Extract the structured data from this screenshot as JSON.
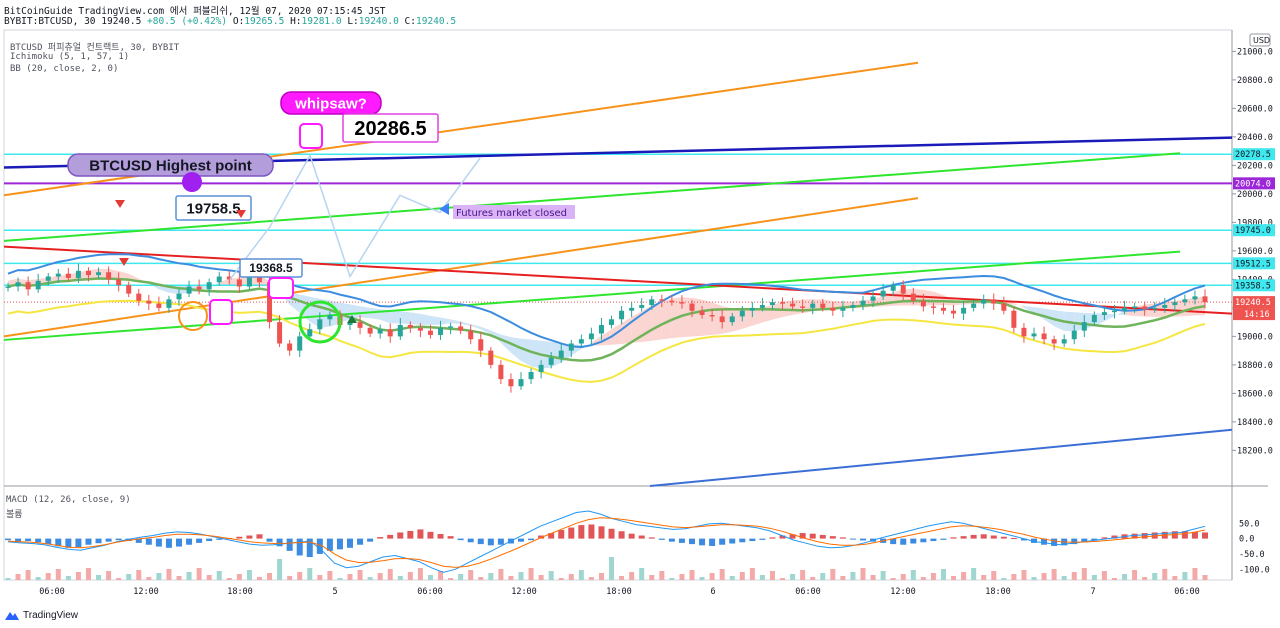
{
  "header": {
    "line1": "BitCoinGuide TradingView.com 에서 퍼블리쉬, 12월 07, 2020 07:15:45 JST",
    "symbol": "BYBIT:BTCUSD, 30",
    "price": "19240.5",
    "change": "+80.5 (+0.42%)",
    "open_label": "O:",
    "open": "19265.5",
    "high_label": "H:",
    "high": "19281.0",
    "low_label": "L:",
    "low": "19240.0",
    "close_label": "C:",
    "close": "19240.5"
  },
  "legend": {
    "line1": "BTCUSD 퍼피츄얼 컨트랙트, 30, BYBIT",
    "line2": "Ichimoku (5, 1, 57, 1)",
    "line3": "BB (20, close, 2, 0)",
    "macd": "MACD (12, 26, close, 9)",
    "volume": "볼륨"
  },
  "footer": {
    "brand": "TradingView"
  },
  "colors": {
    "candle_up": "#26a69a",
    "candle_down": "#ef5350",
    "cloud_up": "#f8c7c2",
    "cloud_down": "#bcdcf3",
    "orange_channel": "#f7931a",
    "green_channel": "#2ee62e",
    "blue_trend": "#1a1ab8",
    "red_trend": "#e62020",
    "horizontal": "#3fe8ee",
    "purple_line": "#9c27d9",
    "bb_basis": "#6fb35a",
    "bb_lower": "#f5e642",
    "bb_upper": "#3c8de0"
  },
  "chart_data": [
    {
      "type": "candlestick",
      "title": "BTCUSD 퍼피츄얼 컨트랙트, 30, BYBIT",
      "ylabel": "USD",
      "ylim": [
        17950,
        21150
      ],
      "y_ticks": [
        "18200.0",
        "18400.0",
        "18600.0",
        "18800.0",
        "19000.0",
        "19200.0",
        "19400.0",
        "19600.0",
        "19800.0",
        "20000.0",
        "20200.0",
        "20400.0",
        "20600.0",
        "20800.0",
        "21000.0"
      ],
      "x_ticks": [
        "06:00",
        "12:00",
        "18:00",
        "5",
        "06:00",
        "12:00",
        "18:00",
        "6",
        "06:00",
        "12:00",
        "18:00",
        "7",
        "06:00"
      ],
      "price_labels": [
        {
          "value": 20278.5,
          "text": "20278.5",
          "color": "#3fe8ee"
        },
        {
          "value": 20074.0,
          "text": "20074.0",
          "color": "#9c27d9"
        },
        {
          "value": 19745.0,
          "text": "19745.0",
          "color": "#3fe8ee"
        },
        {
          "value": 19512.5,
          "text": "19512.5",
          "color": "#3fe8ee"
        },
        {
          "value": 19358.5,
          "text": "19358.5",
          "color": "#3fe8ee"
        },
        {
          "value": 19240.5,
          "text": "19240.5",
          "color": "#ef5350"
        }
      ],
      "countdown": "14:16",
      "close_series": [
        19350,
        19380,
        19330,
        19390,
        19420,
        19440,
        19410,
        19460,
        19430,
        19450,
        19400,
        19360,
        19300,
        19250,
        19230,
        19200,
        19260,
        19300,
        19350,
        19330,
        19380,
        19420,
        19400,
        19350,
        19420,
        19380,
        19100,
        18950,
        18900,
        19000,
        19050,
        19120,
        19150,
        19080,
        19100,
        19060,
        19020,
        19050,
        19000,
        19080,
        19060,
        19040,
        19010,
        19060,
        19070,
        19040,
        18980,
        18900,
        18800,
        18700,
        18650,
        18700,
        18750,
        18800,
        18850,
        18900,
        18950,
        18980,
        19020,
        19080,
        19120,
        19180,
        19200,
        19220,
        19260,
        19250,
        19240,
        19230,
        19180,
        19150,
        19140,
        19100,
        19140,
        19180,
        19200,
        19220,
        19240,
        19230,
        19210,
        19200,
        19230,
        19200,
        19180,
        19200,
        19220,
        19250,
        19280,
        19320,
        19360,
        19300,
        19250,
        19210,
        19200,
        19180,
        19160,
        19200,
        19230,
        19260,
        19230,
        19180,
        19060,
        19000,
        19020,
        18980,
        18950,
        18980,
        19040,
        19100,
        19150,
        19170,
        19180,
        19200,
        19210,
        19190,
        19200,
        19220,
        19240,
        19260,
        19281,
        19240.5
      ],
      "annotations": [
        {
          "text": "whipsaw?",
          "style": "magenta-bubble"
        },
        {
          "text": "20286.5",
          "style": "price-box"
        },
        {
          "text": "BTCUSD Highest point",
          "style": "purple-bubble"
        },
        {
          "text": "19758.5",
          "style": "price-box"
        },
        {
          "text": "19368.5",
          "style": "price-box"
        },
        {
          "text": "Futures market closed",
          "style": "label"
        }
      ]
    },
    {
      "type": "bar",
      "title": "MACD (12, 26, close, 9)",
      "ylim": [
        -135,
        165
      ],
      "y_ticks": [
        "50.0",
        "0.0",
        "-50.0",
        "-100.0"
      ],
      "histogram": [
        -5,
        -10,
        -8,
        -12,
        -18,
        -25,
        -30,
        -28,
        -20,
        -15,
        -10,
        -5,
        -8,
        -14,
        -20,
        -26,
        -30,
        -26,
        -20,
        -14,
        -8,
        -4,
        2,
        6,
        10,
        14,
        -10,
        -25,
        -40,
        -55,
        -60,
        -50,
        -40,
        -35,
        -30,
        -20,
        -10,
        5,
        12,
        20,
        25,
        30,
        22,
        15,
        8,
        -5,
        -12,
        -18,
        -22,
        -20,
        -16,
        -10,
        -5,
        10,
        18,
        28,
        36,
        44,
        46,
        40,
        32,
        24,
        16,
        10,
        4,
        -4,
        -10,
        -14,
        -18,
        -22,
        -24,
        -20,
        -16,
        -12,
        -8,
        -4,
        4,
        10,
        14,
        18,
        16,
        12,
        8,
        4,
        -2,
        -6,
        -10,
        -14,
        -18,
        -20,
        -16,
        -12,
        -8,
        -4,
        4,
        8,
        12,
        14,
        10,
        6,
        2,
        -6,
        -14,
        -20,
        -24,
        -22,
        -18,
        -12,
        -6,
        4,
        10,
        14,
        16,
        18,
        20,
        22,
        24,
        24,
        22,
        20
      ],
      "macd_line": [
        -10,
        -14,
        -16,
        -20,
        -28,
        -35,
        -38,
        -30,
        -22,
        -10,
        -2,
        5,
        10,
        18,
        22,
        20,
        14,
        6,
        -2,
        -10,
        -18,
        -22,
        -20,
        -16,
        -12,
        -8,
        -40,
        -80,
        -95,
        -90,
        -75,
        -60,
        -55,
        -65,
        -75,
        -95,
        -110,
        -100,
        -80,
        -60,
        -40,
        -20,
        0,
        20,
        40,
        55,
        70,
        85,
        90,
        80,
        65,
        55,
        45,
        40,
        35,
        30,
        32,
        40,
        48,
        50,
        45,
        40,
        35,
        25,
        10,
        -5,
        -15,
        -25,
        -30,
        -28,
        -22,
        -12,
        0,
        10,
        20,
        30,
        40,
        48,
        55,
        50,
        40,
        30,
        20,
        10,
        0,
        -10,
        -15,
        -20,
        -15,
        -10,
        -5,
        0,
        5,
        10,
        12,
        15,
        18,
        20,
        30,
        40
      ],
      "signal_line": [
        -8,
        -10,
        -12,
        -16,
        -22,
        -28,
        -30,
        -26,
        -20,
        -12,
        -6,
        0,
        4,
        10,
        14,
        14,
        12,
        8,
        2,
        -4,
        -10,
        -14,
        -16,
        -15,
        -13,
        -11,
        -24,
        -50,
        -70,
        -78,
        -77,
        -72,
        -66,
        -65,
        -68,
        -78,
        -90,
        -94,
        -90,
        -80,
        -66,
        -50,
        -34,
        -16,
        2,
        18,
        34,
        50,
        62,
        68,
        66,
        62,
        56,
        50,
        44,
        38,
        36,
        38,
        42,
        45,
        45,
        43,
        40,
        34,
        24,
        12,
        0,
        -10,
        -18,
        -22,
        -22,
        -18,
        -10,
        -2,
        6,
        14,
        22,
        30,
        38,
        42,
        40,
        36,
        30,
        22,
        14,
        4,
        -4,
        -10,
        -12,
        -11,
        -9,
        -6,
        -2,
        2,
        6,
        9,
        12,
        15,
        20,
        28
      ]
    }
  ]
}
